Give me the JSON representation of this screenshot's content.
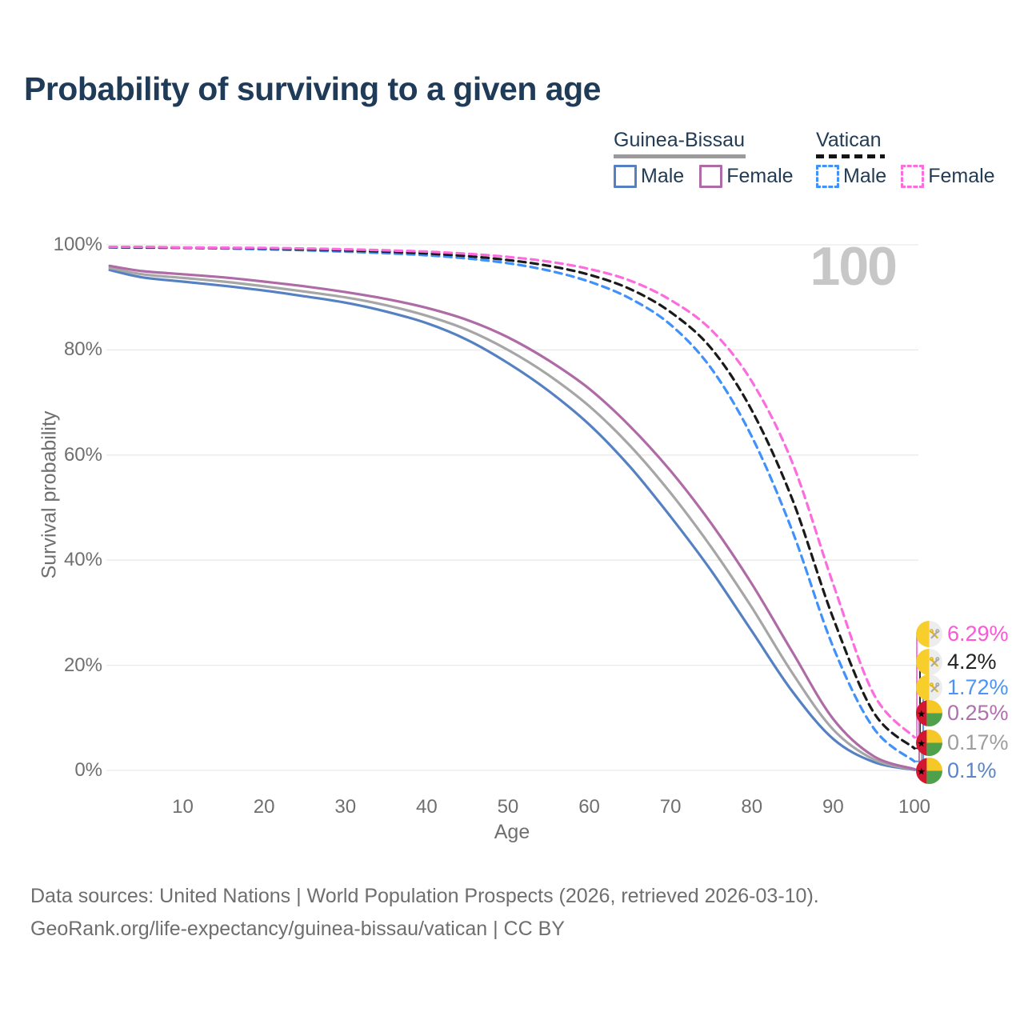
{
  "title": "Probability of surviving to a given age",
  "watermark": "100",
  "legend": {
    "groups": [
      {
        "label": "Guinea-Bissau",
        "line_style": "solid",
        "underline_color": "#9b9b9b",
        "items": [
          {
            "label": "Male",
            "color": "#5581C2",
            "dashed": false
          },
          {
            "label": "Female",
            "color": "#AF6BA6",
            "dashed": false
          }
        ]
      },
      {
        "label": "Vatican",
        "line_style": "dashed",
        "underline_color": "#141414",
        "items": [
          {
            "label": "Male",
            "color": "#4191FA",
            "dashed": true
          },
          {
            "label": "Female",
            "color": "#FC6CDF",
            "dashed": true
          }
        ]
      }
    ]
  },
  "chart_data": {
    "type": "line",
    "title": "Probability of surviving to a given age",
    "xlabel": "Age",
    "ylabel": "Survival probability",
    "xlim": [
      0,
      100
    ],
    "ylim": [
      0,
      100
    ],
    "grid": true,
    "xticks": [
      10,
      20,
      30,
      40,
      50,
      60,
      70,
      80,
      90,
      100
    ],
    "yticks": [
      0,
      20,
      40,
      60,
      80,
      100
    ],
    "ytick_labels": [
      "0%",
      "20%",
      "40%",
      "60%",
      "80%",
      "100%"
    ],
    "x": [
      1,
      5,
      10,
      15,
      20,
      25,
      30,
      35,
      40,
      45,
      50,
      55,
      60,
      65,
      70,
      75,
      80,
      85,
      90,
      95,
      100
    ],
    "series": [
      {
        "name": "Guinea-Bissau Male",
        "country": "Guinea-Bissau",
        "sex": "Male",
        "color": "#5581C2",
        "dashed": false,
        "values": [
          95.2,
          93.8,
          93.0,
          92.2,
          91.3,
          90.2,
          89.0,
          87.3,
          85.1,
          81.9,
          77.5,
          72.2,
          65.8,
          57.8,
          48.3,
          38.0,
          26.5,
          15.0,
          6.0,
          1.6,
          0.1
        ]
      },
      {
        "name": "Guinea-Bissau Both sexes",
        "country": "Guinea-Bissau",
        "sex": "Both sexes",
        "color": "#A6A6A6",
        "dashed": false,
        "values": [
          95.6,
          94.4,
          93.7,
          93.0,
          92.1,
          91.1,
          90.0,
          88.5,
          86.5,
          83.8,
          80.0,
          75.2,
          69.3,
          61.8,
          52.8,
          42.5,
          31.0,
          18.5,
          7.8,
          2.1,
          0.17
        ]
      },
      {
        "name": "Guinea-Bissau Female",
        "country": "Guinea-Bissau",
        "sex": "Female",
        "color": "#AF6BA6",
        "dashed": false,
        "values": [
          96.0,
          95.0,
          94.4,
          93.8,
          93.0,
          92.1,
          91.0,
          89.7,
          88.0,
          85.7,
          82.4,
          78.0,
          72.6,
          65.5,
          57.0,
          47.0,
          35.5,
          22.5,
          9.8,
          2.7,
          0.25
        ]
      },
      {
        "name": "Vatican Male",
        "country": "Vatican",
        "sex": "Male",
        "color": "#4191FA",
        "dashed": true,
        "values": [
          99.5,
          99.45,
          99.4,
          99.3,
          99.15,
          98.95,
          98.7,
          98.4,
          98.0,
          97.4,
          96.5,
          95.1,
          93.0,
          89.8,
          84.8,
          76.5,
          63.5,
          45.5,
          23.5,
          8.0,
          1.72
        ]
      },
      {
        "name": "Vatican Both sexes",
        "country": "Vatican",
        "sex": "Both sexes",
        "color": "#1A1A1A",
        "dashed": true,
        "values": [
          99.55,
          99.5,
          99.45,
          99.4,
          99.3,
          99.15,
          98.95,
          98.7,
          98.35,
          97.85,
          97.1,
          96.0,
          94.3,
          91.6,
          87.2,
          80.3,
          68.5,
          51.5,
          29.0,
          11.0,
          4.2
        ]
      },
      {
        "name": "Vatican Female",
        "country": "Vatican",
        "sex": "Female",
        "color": "#FC6CDF",
        "dashed": true,
        "values": [
          99.6,
          99.6,
          99.5,
          99.45,
          99.4,
          99.3,
          99.15,
          98.95,
          98.7,
          98.3,
          97.7,
          96.8,
          95.4,
          93.2,
          89.5,
          83.8,
          74.0,
          58.5,
          35.5,
          14.5,
          6.29
        ]
      }
    ],
    "end_labels": [
      {
        "value": "6.29%",
        "series": "Vatican Female",
        "text_color": "#FB57D8",
        "line_color": "#FC6CDF",
        "flag": "vatican"
      },
      {
        "value": "4.2%",
        "series": "Vatican Both sexes",
        "text_color": "#222222",
        "line_color": "#1A1A1A",
        "flag": "vatican"
      },
      {
        "value": "1.72%",
        "series": "Vatican Male",
        "text_color": "#4B94F7",
        "line_color": "#4191FA",
        "flag": "vatican"
      },
      {
        "value": "0.25%",
        "series": "Guinea-Bissau Female",
        "text_color": "#B06FAE",
        "line_color": "#AF6BA6",
        "flag": "guinea-bissau"
      },
      {
        "value": "0.17%",
        "series": "Guinea-Bissau Both sexes",
        "text_color": "#9E9E9E",
        "line_color": "#A6A6A6",
        "flag": "guinea-bissau"
      },
      {
        "value": "0.1%",
        "series": "Guinea-Bissau Male",
        "text_color": "#5B85C8",
        "line_color": "#5581C2",
        "flag": "guinea-bissau"
      }
    ]
  },
  "colors": {
    "title": "#1F3B57",
    "axis_text": "#6F6F6F",
    "gridline": "#E9E9E9",
    "watermark": "#C7C7C7",
    "flag_vatican_yellow": "#F7CE2B",
    "flag_vatican_white": "#EDEDED",
    "flag_gb_red": "#D11830",
    "flag_gb_yellow": "#F5C827",
    "flag_gb_green": "#4FA04A"
  },
  "footer": {
    "line1": "Data sources: United Nations | World Population Prospects (2026, retrieved 2026-03-10).",
    "line2": "GeoRank.org/life-expectancy/guinea-bissau/vatican | CC BY"
  }
}
